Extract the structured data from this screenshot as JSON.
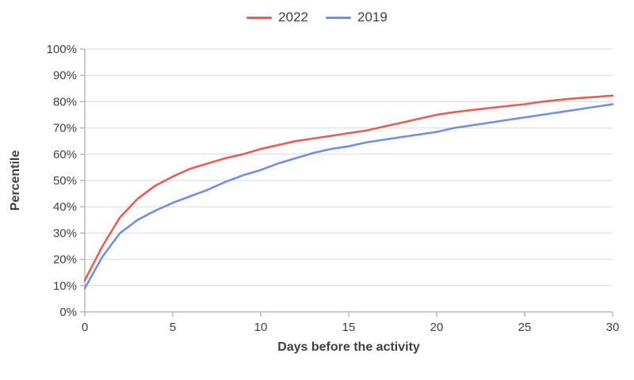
{
  "legend": {
    "items": [
      {
        "label": "2022",
        "color": "#ed5b51"
      },
      {
        "label": "2019",
        "color": "#6f8fe8"
      }
    ]
  },
  "chart_data": {
    "type": "line",
    "title": "",
    "xlabel": "Days before the activity",
    "ylabel": "Percentile",
    "xlim": [
      0,
      30
    ],
    "ylim": [
      0,
      100
    ],
    "grid": "horizontal-only",
    "legend_position": "top-center",
    "x_ticks": [
      {
        "value": 0,
        "label": "0"
      },
      {
        "value": 5,
        "label": "5"
      },
      {
        "value": 10,
        "label": "10"
      },
      {
        "value": 15,
        "label": "15"
      },
      {
        "value": 20,
        "label": "20"
      },
      {
        "value": 25,
        "label": "25"
      },
      {
        "value": 30,
        "label": "30"
      }
    ],
    "y_ticks": [
      {
        "value": 0,
        "label": "0%"
      },
      {
        "value": 10,
        "label": "10%"
      },
      {
        "value": 20,
        "label": "20%"
      },
      {
        "value": 30,
        "label": "30%"
      },
      {
        "value": 40,
        "label": "40%"
      },
      {
        "value": 50,
        "label": "50%"
      },
      {
        "value": 60,
        "label": "60%"
      },
      {
        "value": 70,
        "label": "70%"
      },
      {
        "value": 80,
        "label": "80%"
      },
      {
        "value": 90,
        "label": "90%"
      },
      {
        "value": 100,
        "label": "100%"
      }
    ],
    "x": [
      0,
      1,
      2,
      3,
      4,
      5,
      6,
      7,
      8,
      9,
      10,
      11,
      12,
      13,
      14,
      15,
      16,
      17,
      18,
      19,
      20,
      21,
      22,
      23,
      24,
      25,
      26,
      27,
      28,
      29,
      30
    ],
    "series": [
      {
        "name": "2022",
        "color": "#ed5b51",
        "values": [
          12,
          25,
          36,
          43,
          48,
          51.5,
          54.5,
          56.5,
          58.5,
          60,
          62,
          63.5,
          65,
          66,
          67,
          68,
          69,
          70.5,
          72,
          73.5,
          75,
          76,
          76.8,
          77.6,
          78.3,
          79,
          80,
          80.7,
          81.3,
          81.8,
          82.3
        ]
      },
      {
        "name": "2019",
        "color": "#6f8fe8",
        "values": [
          9,
          21,
          30,
          35,
          38.5,
          41.5,
          44,
          46.5,
          49.5,
          52,
          54,
          56.5,
          58.5,
          60.5,
          62,
          63,
          64.5,
          65.5,
          66.5,
          67.5,
          68.5,
          70,
          71,
          72,
          73,
          74,
          75,
          76,
          77,
          78,
          79
        ]
      }
    ],
    "colors": {
      "grid": "#d9d9d9",
      "axis": "#a9a9a9",
      "text": "#3f3f3f",
      "background": "#ffffff"
    }
  }
}
